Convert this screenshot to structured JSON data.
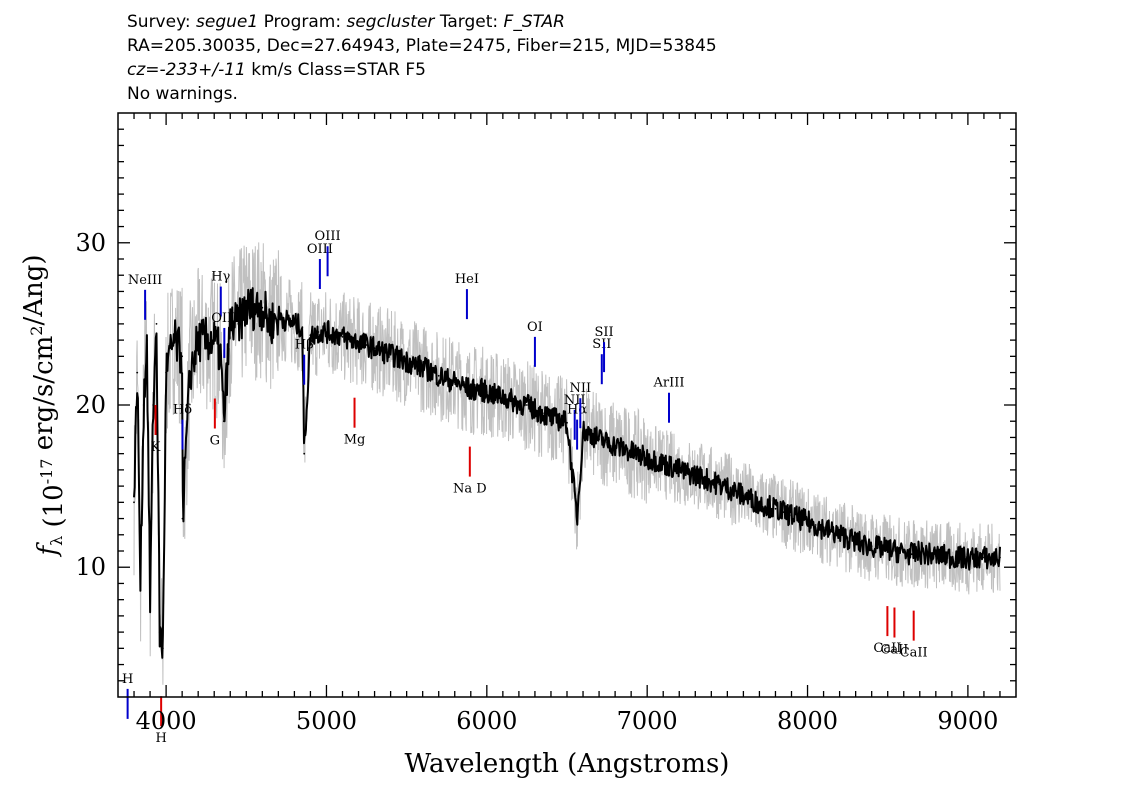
{
  "header": {
    "survey_label": "Survey:",
    "survey": "segue1",
    "program_label": "Program:",
    "program": "segcluster",
    "target_label": "Target:",
    "target": "F_STAR",
    "line2": "RA=205.30035, Dec=27.64943, Plate=2475, Fiber=215, MJD=53845",
    "cz_label": "cz=",
    "cz": "-233+/-11",
    "cz_rest": "km/s Class=STAR F5",
    "warnings": "No warnings."
  },
  "chart_data": {
    "type": "line",
    "title": "",
    "xlabel": "Wavelength (Angstroms)",
    "ylabel": "f_λ (10^-17 erg/s/cm²/Ang)",
    "xlim": [
      3700,
      9300
    ],
    "ylim": [
      2,
      38
    ],
    "x_ticks": [
      4000,
      5000,
      6000,
      7000,
      8000,
      9000
    ],
    "y_ticks": [
      10,
      20,
      30
    ],
    "series": [
      {
        "color": "#000000",
        "role": "smoothed spectrum",
        "x": [
          3800,
          3820,
          3840,
          3860,
          3880,
          3900,
          3920,
          3940,
          3960,
          3980,
          4000,
          4050,
          4100,
          4102,
          4150,
          4200,
          4250,
          4300,
          4340,
          4360,
          4400,
          4450,
          4500,
          4550,
          4600,
          4650,
          4700,
          4750,
          4800,
          4850,
          4861,
          4900,
          4950,
          5000,
          5050,
          5100,
          5150,
          5200,
          5250,
          5300,
          5350,
          5400,
          5450,
          5500,
          5550,
          5600,
          5650,
          5700,
          5750,
          5800,
          5850,
          5900,
          5950,
          6000,
          6050,
          6100,
          6150,
          6200,
          6250,
          6300,
          6350,
          6400,
          6450,
          6500,
          6563,
          6600,
          6650,
          6700,
          6750,
          6800,
          6850,
          6900,
          6950,
          7000,
          7050,
          7100,
          7150,
          7200,
          7250,
          7300,
          7350,
          7400,
          7450,
          7500,
          7550,
          7600,
          7650,
          7700,
          7750,
          7800,
          7850,
          7900,
          7950,
          8000,
          8050,
          8100,
          8150,
          8200,
          8250,
          8300,
          8350,
          8400,
          8450,
          8500,
          8550,
          8600,
          8650,
          8700,
          8750,
          8800,
          8850,
          8900,
          8950,
          9000,
          9050,
          9100,
          9150,
          9200
        ],
        "y": [
          14,
          22,
          9,
          20,
          24,
          8,
          20,
          25,
          6,
          5,
          22,
          24,
          23,
          13,
          22,
          24,
          24,
          24,
          23,
          19,
          25,
          25,
          26,
          26,
          26,
          25,
          25.5,
          25.2,
          25,
          24.8,
          17,
          24.3,
          24.5,
          24.5,
          24.4,
          24.2,
          24.0,
          23.9,
          23.7,
          23.5,
          23.3,
          23.1,
          22.9,
          22.7,
          22.5,
          22.3,
          22.1,
          21.8,
          21.6,
          21.4,
          21.2,
          20.9,
          21.0,
          20.8,
          20.6,
          20.5,
          20.3,
          20.1,
          20.0,
          19.7,
          19.5,
          19.2,
          19.1,
          18.9,
          13,
          18.4,
          18.2,
          17.9,
          17.7,
          17.5,
          17.3,
          17.1,
          16.9,
          16.7,
          16.6,
          16.4,
          16.2,
          16,
          15.8,
          15.7,
          15.5,
          15.3,
          15.1,
          14.9,
          14.7,
          14.4,
          14.2,
          13.9,
          13.8,
          13.6,
          13.4,
          13.2,
          13.0,
          12.8,
          12.6,
          12.4,
          12.2,
          12.0,
          11.8,
          11.6,
          11.4,
          11.3,
          11.2,
          11.1,
          11.0,
          10.9,
          10.8,
          10.9,
          10.8,
          10.7,
          10.7,
          10.6,
          10.6,
          10.5,
          10.6,
          10.6,
          10.5,
          10.6
        ]
      }
    ],
    "emission_lines": [
      {
        "label": "H",
        "x": 3760
      },
      {
        "label": "NeIII",
        "x": 3869
      },
      {
        "label": "Hδ",
        "x": 4102
      },
      {
        "label": "Hγ",
        "x": 4341
      },
      {
        "label": "OIII",
        "x": 4363
      },
      {
        "label": "Hβ",
        "x": 4861
      },
      {
        "label": "OIII",
        "x": 4959
      },
      {
        "label": "OIII",
        "x": 5007
      },
      {
        "label": "HeI",
        "x": 5876
      },
      {
        "label": "OI",
        "x": 6300
      },
      {
        "label": "NII",
        "x": 6548
      },
      {
        "label": "Hα",
        "x": 6563
      },
      {
        "label": "NII",
        "x": 6583
      },
      {
        "label": "SII",
        "x": 6717
      },
      {
        "label": "SII",
        "x": 6731
      },
      {
        "label": "ArIII",
        "x": 7136
      }
    ],
    "absorption_lines": [
      {
        "label": "K",
        "x": 3934
      },
      {
        "label": "H",
        "x": 3969
      },
      {
        "label": "G",
        "x": 4304
      },
      {
        "label": "Mg",
        "x": 5175
      },
      {
        "label": "Na D",
        "x": 5894
      },
      {
        "label": "CaII",
        "x": 8498
      },
      {
        "label": "CaII",
        "x": 8542
      },
      {
        "label": "CaII",
        "x": 8662
      }
    ],
    "colors": {
      "spectrum": "#000000",
      "noise_band": "#c0c0c0",
      "emission": "#0000cc",
      "absorption": "#dd0000"
    },
    "grid": false
  }
}
